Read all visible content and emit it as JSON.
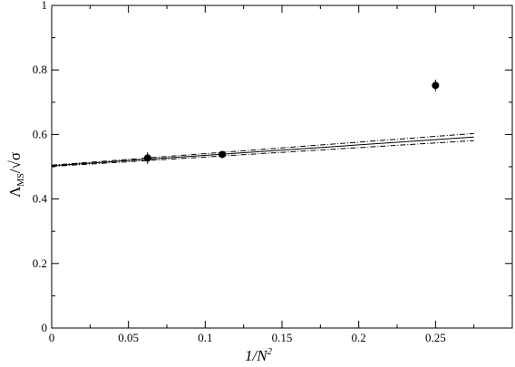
{
  "chart_data": {
    "type": "scatter",
    "xlabel": "1/N",
    "xlabel_sup": "2",
    "ylabel_main": "Λ",
    "ylabel_sub": "MS",
    "ylabel_tail": "/√σ",
    "xlim": [
      0,
      0.3
    ],
    "ylim": [
      0,
      1
    ],
    "xticks": [
      0,
      0.05,
      0.1,
      0.15,
      0.2,
      0.25
    ],
    "xtick_labels": [
      "0",
      "0.05",
      "0.1",
      "0.15",
      "0.2",
      "0.25"
    ],
    "yticks": [
      0,
      0.2,
      0.4,
      0.6,
      0.8,
      1
    ],
    "ytick_labels": [
      "0",
      "0.2",
      "0.4",
      "0.6",
      "0.8",
      "1"
    ],
    "grid": false,
    "points": [
      {
        "x": 0.0625,
        "y": 0.527,
        "err": 0.018
      },
      {
        "x": 0.1111,
        "y": 0.538,
        "err": 0.008
      },
      {
        "x": 0.25,
        "y": 0.752,
        "err": 0.018
      }
    ],
    "fit": {
      "x": [
        0,
        0.275
      ],
      "y": [
        0.503,
        0.592
      ]
    },
    "fit_upper": {
      "x": [
        0,
        0.275
      ],
      "y": [
        0.505,
        0.603
      ]
    },
    "fit_lower": {
      "x": [
        0,
        0.275
      ],
      "y": [
        0.501,
        0.581
      ]
    }
  }
}
